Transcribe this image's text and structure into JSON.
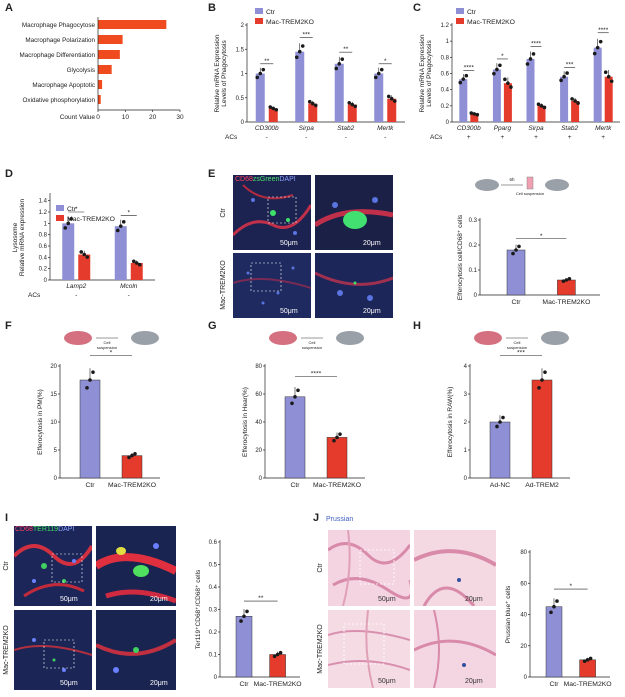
{
  "colors": {
    "ctr": "#8e8fd4",
    "ko": "#e53b2d",
    "bar_a": "#f04a1f",
    "dot": "#1a1a1a",
    "pink": "#f1c7d8",
    "fluor_bg": "#1a2450"
  },
  "panels": {
    "A": {
      "label": "A",
      "xlabel": "Count Value"
    },
    "B": {
      "label": "B",
      "ylabel": "Relative mRNA Expression\nLevels of Phagocytosis",
      "acs_label": "ACs",
      "acs": [
        "-",
        "-",
        "-",
        "-"
      ],
      "sig": [
        "**",
        "***",
        "**",
        "*"
      ],
      "legend": [
        "Ctr",
        "Mac-TREM2KO"
      ]
    },
    "C": {
      "label": "C",
      "ylabel": "Relative mRNA Expression\nLevels of Phagocytosis",
      "acs_label": "ACs",
      "acs": [
        "+",
        "+",
        "+",
        "+",
        "+"
      ],
      "sig": [
        "****",
        "*",
        "****",
        "***",
        "****"
      ],
      "legend": [
        "Ctr",
        "Mac-TREM2KO"
      ]
    },
    "D": {
      "label": "D",
      "ylabel_top": "Lysosome",
      "ylabel": "Relative mRNA expression",
      "acs_label": "ACs",
      "acs": [
        "-",
        "-"
      ],
      "sig": [
        "*",
        "*"
      ],
      "legend": [
        "Ctr",
        "Mac-TREM2KO"
      ]
    },
    "E": {
      "label": "E",
      "stain": [
        "CD68",
        "zsGreen",
        "DAPI"
      ],
      "row_labels": [
        "Ctr",
        "Mac-TREM2KO"
      ],
      "scale": [
        "50μm",
        "20μm",
        "50μm",
        "20μm"
      ],
      "ylabel": "Efferocytosis cell/CD68⁺ cells",
      "sig": "*",
      "icon_text": [
        "6h",
        "Cell suspension"
      ]
    },
    "F": {
      "label": "F",
      "ylabel": "Efferocytosis in PM(%)",
      "sig": "*",
      "icon_text": [
        "Cell",
        "suspension"
      ]
    },
    "G": {
      "label": "G",
      "ylabel": "Efferocytosis in Hear(%)",
      "sig": "****",
      "icon_text": [
        "Cell",
        "suspension"
      ]
    },
    "H": {
      "label": "H",
      "ylabel": "Efferocytosis in RAW(%)",
      "sig": "***",
      "icon_text": [
        "Cell",
        "suspension"
      ]
    },
    "I": {
      "label": "I",
      "stain": [
        "CD68",
        "TER119",
        "DAPI"
      ],
      "row_labels": [
        "Ctr",
        "Mac-TREM2KO"
      ],
      "scale": [
        "50μm",
        "20μm",
        "50μm",
        "20μm"
      ],
      "ylabel": "Ter119⁺CD68⁺/CD68⁺ cells",
      "sig": "**"
    },
    "J": {
      "label": "J",
      "stain": "Prussian",
      "row_labels": [
        "Ctr",
        "Mac-TREM2KO"
      ],
      "scale": [
        "50μm",
        "20μm",
        "50μm",
        "20μm"
      ],
      "ylabel": "Prussian blue⁺ cells",
      "sig": "*"
    }
  },
  "chart_data": [
    {
      "id": "A",
      "type": "bar",
      "orientation": "horizontal",
      "categories": [
        "Macrophage Phagocytose",
        "Macrophage Polarization",
        "Macrophage Differentiation",
        "Glycolysis",
        "Macrophage Apoptotic",
        "Oxidative phosphorylation"
      ],
      "values": [
        25,
        9,
        8,
        5,
        1.5,
        1
      ],
      "xlabel": "Count Value",
      "xlim": [
        0,
        30
      ],
      "xticks": [
        0,
        10,
        20,
        30
      ]
    },
    {
      "id": "B",
      "type": "bar",
      "categories": [
        "CD300b",
        "Sirpa",
        "Stab2",
        "Mertk"
      ],
      "series": [
        {
          "name": "Ctr",
          "values": [
            1.0,
            1.45,
            1.2,
            1.0
          ]
        },
        {
          "name": "Mac-TREM2KO",
          "values": [
            0.28,
            0.38,
            0.36,
            0.48
          ]
        }
      ],
      "ylim": [
        0,
        2.0
      ],
      "yticks": [
        0.0,
        0.5,
        1.0,
        1.5,
        2.0
      ]
    },
    {
      "id": "C",
      "type": "bar",
      "categories": [
        "CD300b",
        "Pparg",
        "Sirpa",
        "Stab2",
        "Mertk"
      ],
      "series": [
        {
          "name": "Ctr",
          "values": [
            0.53,
            0.65,
            0.78,
            0.56,
            0.92
          ]
        },
        {
          "name": "Mac-TREM2KO",
          "values": [
            0.1,
            0.48,
            0.2,
            0.26,
            0.56
          ]
        }
      ],
      "ylim": [
        0,
        1.2
      ],
      "yticks": [
        0.0,
        0.2,
        0.4,
        0.6,
        0.8,
        1.0,
        1.2
      ]
    },
    {
      "id": "D",
      "type": "bar",
      "categories": [
        "Lamp2",
        "Mcoln"
      ],
      "series": [
        {
          "name": "Ctr",
          "values": [
            1.0,
            0.95
          ]
        },
        {
          "name": "Mac-TREM2KO",
          "values": [
            0.45,
            0.3
          ]
        }
      ],
      "ylim": [
        0,
        1.5
      ],
      "yticks": [
        0.0,
        0.2,
        0.4,
        0.6,
        0.8,
        1.0,
        1.2,
        1.4
      ]
    },
    {
      "id": "E",
      "type": "bar",
      "categories": [
        "Ctr",
        "Mac-TREM2KO"
      ],
      "values": [
        0.18,
        0.06
      ],
      "ylim": [
        0,
        0.3
      ],
      "yticks": [
        0.0,
        0.1,
        0.2,
        0.3
      ]
    },
    {
      "id": "F",
      "type": "bar",
      "categories": [
        "Ctr",
        "Mac-TREM2KO"
      ],
      "values": [
        17.5,
        4.0
      ],
      "ylim": [
        0,
        20
      ],
      "yticks": [
        0,
        5,
        10,
        15,
        20
      ]
    },
    {
      "id": "G",
      "type": "bar",
      "categories": [
        "Ctr",
        "Mac-TREM2KO"
      ],
      "values": [
        58,
        29
      ],
      "ylim": [
        0,
        80
      ],
      "yticks": [
        0,
        20,
        40,
        60,
        80
      ]
    },
    {
      "id": "H",
      "type": "bar",
      "categories": [
        "Ad-NC",
        "Ad-TREM2"
      ],
      "values": [
        2.0,
        3.5
      ],
      "ylim": [
        0,
        4
      ],
      "yticks": [
        0,
        1,
        2,
        3,
        4
      ]
    },
    {
      "id": "I",
      "type": "bar",
      "categories": [
        "Ctr",
        "Mac-TREM2KO"
      ],
      "values": [
        0.27,
        0.1
      ],
      "ylim": [
        0,
        0.6
      ],
      "yticks": [
        0.0,
        0.1,
        0.2,
        0.3,
        0.4,
        0.5,
        0.6
      ]
    },
    {
      "id": "J",
      "type": "bar",
      "categories": [
        "Ctr",
        "Mac-TREM2KO"
      ],
      "values": [
        45,
        11
      ],
      "ylim": [
        0,
        80
      ],
      "yticks": [
        0,
        20,
        40,
        60,
        80
      ]
    }
  ]
}
